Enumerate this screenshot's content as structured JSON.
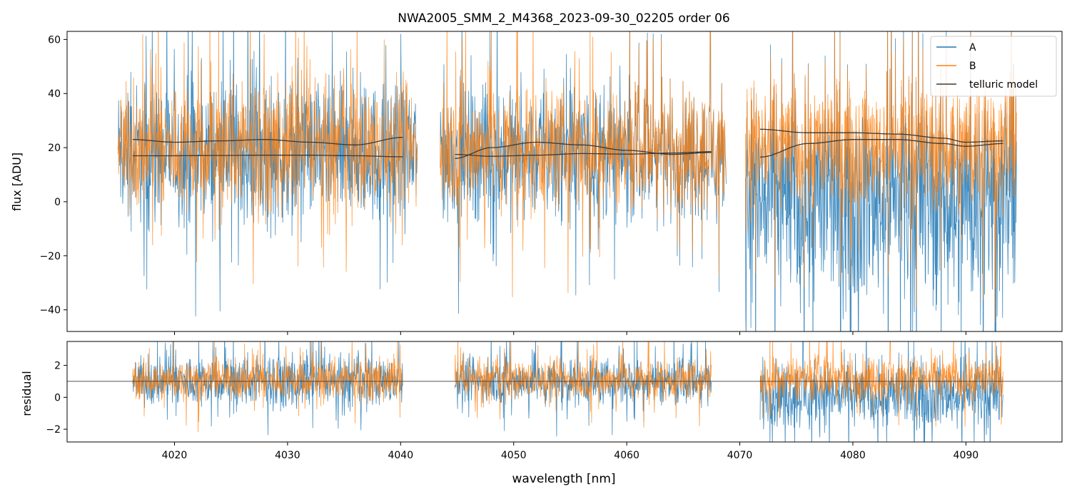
{
  "figure": {
    "title": "NWA2005_SMM_2_M4368_2023-09-30_02205  order 06",
    "xlabel": "wavelength [nm]"
  },
  "colors": {
    "A": "#1f77b4",
    "B": "#ff7f0e",
    "model": "#3a3a3a",
    "axes": "#000000"
  },
  "chart_data": [
    {
      "type": "line",
      "panel": "flux",
      "ylabel": "flux [ADU]",
      "xlim": [
        4010.5,
        4098.5
      ],
      "ylim": [
        -48,
        63
      ],
      "yticks": [
        -40,
        -20,
        0,
        20,
        40,
        60
      ],
      "xticks": [
        4020,
        4030,
        4040,
        4050,
        4060,
        4070,
        4080,
        4090
      ],
      "legend": {
        "location": "top-right",
        "entries": [
          "A",
          "B",
          "telluric model"
        ]
      },
      "segments": [
        {
          "range": [
            4015.0,
            4041.5
          ],
          "model_range": [
            4016.3,
            4040.2
          ],
          "A_mean": 18,
          "A_spread": 28,
          "B_mean": 20,
          "B_spread": 24
        },
        {
          "range": [
            4043.5,
            4068.8
          ],
          "model_range": [
            4044.8,
            4067.5
          ],
          "A_mean": 18,
          "A_spread": 26,
          "B_mean": 20,
          "B_spread": 24
        },
        {
          "range": [
            4070.5,
            4094.5
          ],
          "model_range": [
            4071.8,
            4093.3
          ],
          "A_mean": 2,
          "A_spread": 44,
          "B_mean": 21,
          "B_spread": 26
        }
      ],
      "telluric_model": [
        {
          "x": [
            4016.3,
            4020,
            4024,
            4028,
            4032,
            4036,
            4040.2
          ],
          "y": [
            23.0,
            22.0,
            22.5,
            23.0,
            22.0,
            21.0,
            23.8
          ]
        },
        {
          "x": [
            4016.3,
            4020,
            4024,
            4028,
            4032,
            4036,
            4040.2
          ],
          "y": [
            17.0,
            17.0,
            17.1,
            17.2,
            17.2,
            17.0,
            16.6
          ]
        },
        {
          "x": [
            4044.8,
            4048,
            4052,
            4056,
            4060,
            4064,
            4067.5
          ],
          "y": [
            16.0,
            20.0,
            22.0,
            21.0,
            19.0,
            17.5,
            18.2
          ]
        },
        {
          "x": [
            4044.8,
            4048,
            4052,
            4056,
            4060,
            4064,
            4067.5
          ],
          "y": [
            17.5,
            16.8,
            17.2,
            17.8,
            17.6,
            18.0,
            18.5
          ]
        },
        {
          "x": [
            4071.8,
            4076,
            4080,
            4084,
            4088,
            4090,
            4093.3
          ],
          "y": [
            26.8,
            25.5,
            25.5,
            25.0,
            23.5,
            22.0,
            22.5
          ]
        },
        {
          "x": [
            4071.8,
            4076,
            4080,
            4084,
            4088,
            4090,
            4093.3
          ],
          "y": [
            16.5,
            21.5,
            23.0,
            23.0,
            21.5,
            20.5,
            21.5
          ]
        }
      ]
    },
    {
      "type": "line",
      "panel": "residual",
      "ylabel": "residual",
      "xlim": [
        4010.5,
        4098.5
      ],
      "ylim": [
        -2.8,
        3.5
      ],
      "yticks": [
        -2,
        0,
        2
      ],
      "xticks": [
        4020,
        4030,
        4040,
        4050,
        4060,
        4070,
        4080,
        4090
      ],
      "xticklabels": [
        "4020",
        "4030",
        "4040",
        "4050",
        "4060",
        "4070",
        "4080",
        "4090"
      ],
      "reference_line": 1,
      "segments": [
        {
          "range": [
            4016.3,
            4040.2
          ],
          "A_mean": 1.0,
          "A_spread": 1.6,
          "B_mean": 1.1,
          "B_spread": 1.3
        },
        {
          "range": [
            4044.8,
            4067.5
          ],
          "A_mean": 1.0,
          "A_spread": 1.5,
          "B_mean": 1.1,
          "B_spread": 1.3
        },
        {
          "range": [
            4071.8,
            4093.3
          ],
          "A_mean": 0.2,
          "A_spread": 2.2,
          "B_mean": 1.2,
          "B_spread": 1.5
        }
      ]
    }
  ]
}
